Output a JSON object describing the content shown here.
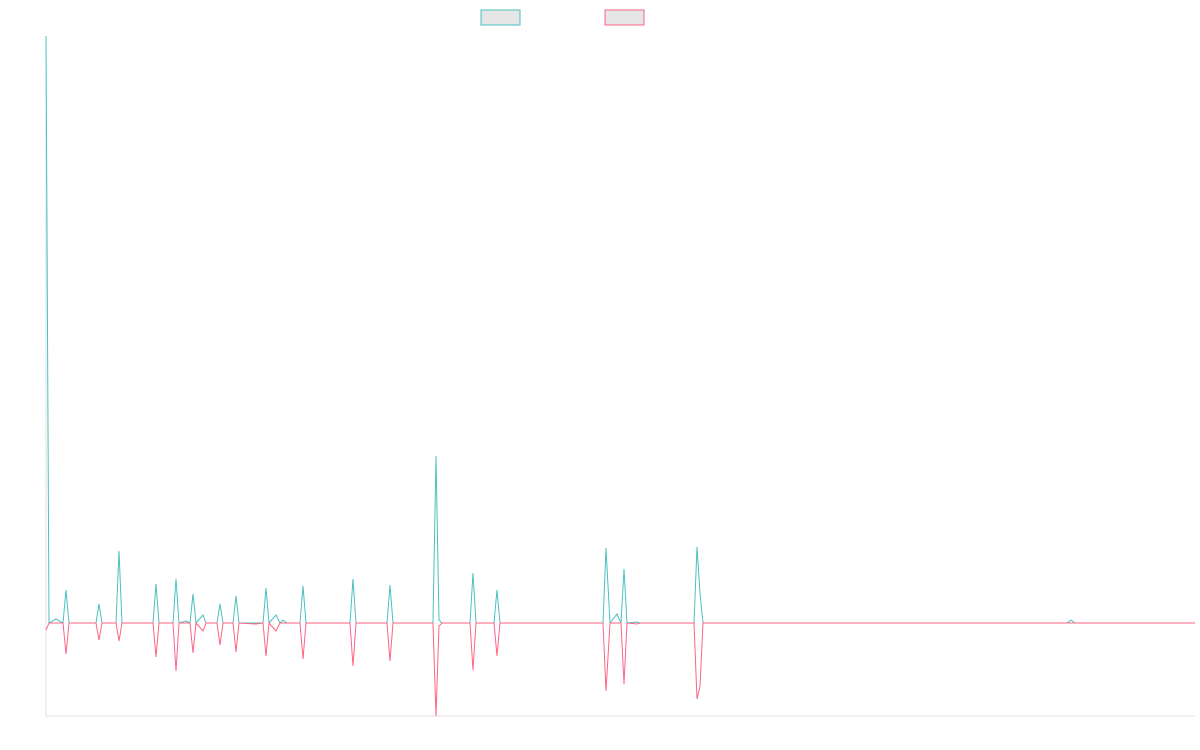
{
  "chart_data": {
    "type": "line",
    "x": [
      0,
      3,
      10,
      17,
      20,
      23,
      50,
      53,
      56,
      70,
      73,
      76,
      107,
      110,
      113,
      127,
      130,
      133,
      140,
      144,
      147,
      150,
      157,
      160,
      171,
      174,
      177,
      187,
      190,
      193,
      210,
      217,
      220,
      223,
      230,
      234,
      237,
      241,
      254,
      257,
      260,
      304,
      307,
      310,
      341,
      344,
      347,
      387,
      390,
      393,
      396,
      424,
      427,
      430,
      448,
      451,
      454,
      557,
      560,
      564,
      571,
      575,
      578,
      581,
      591,
      594,
      648,
      651,
      654,
      657,
      1021,
      1025,
      1029,
      1149
    ],
    "series": [
      {
        "color": "#4bc0c0",
        "values": [
          587,
          0,
          4,
          0,
          33,
          0,
          0,
          19,
          0,
          0,
          72,
          0,
          0,
          39,
          0,
          0,
          44,
          0,
          2,
          0,
          29,
          0,
          8,
          0,
          0,
          19,
          0,
          0,
          27,
          0,
          0,
          0,
          35,
          0,
          8,
          0,
          3,
          0,
          0,
          37,
          0,
          0,
          44,
          0,
          0,
          38,
          0,
          0,
          167,
          3,
          0,
          0,
          50,
          0,
          0,
          33,
          0,
          0,
          75,
          0,
          9,
          0,
          54,
          0,
          1,
          0,
          0,
          76,
          30,
          0,
          0,
          3,
          0,
          0
        ]
      },
      {
        "color": "#ff6384",
        "values": [
          -7,
          0,
          0,
          0,
          -31,
          0,
          0,
          -17,
          0,
          0,
          -18,
          0,
          0,
          -34,
          0,
          0,
          -48,
          0,
          0,
          0,
          -30,
          0,
          -8,
          0,
          0,
          -22,
          0,
          0,
          -29,
          0,
          -1,
          0,
          -33,
          0,
          -8,
          0,
          0,
          0,
          0,
          -36,
          0,
          0,
          -43,
          0,
          0,
          -38,
          0,
          0,
          -93,
          -3,
          0,
          0,
          -47,
          0,
          0,
          -33,
          0,
          0,
          -68,
          0,
          0,
          0,
          -61,
          0,
          -1,
          0,
          0,
          -76,
          -63,
          0,
          0,
          0,
          0,
          0
        ]
      }
    ],
    "xlim": [
      0,
      1149
    ],
    "ylim": [
      -93,
      587
    ]
  }
}
